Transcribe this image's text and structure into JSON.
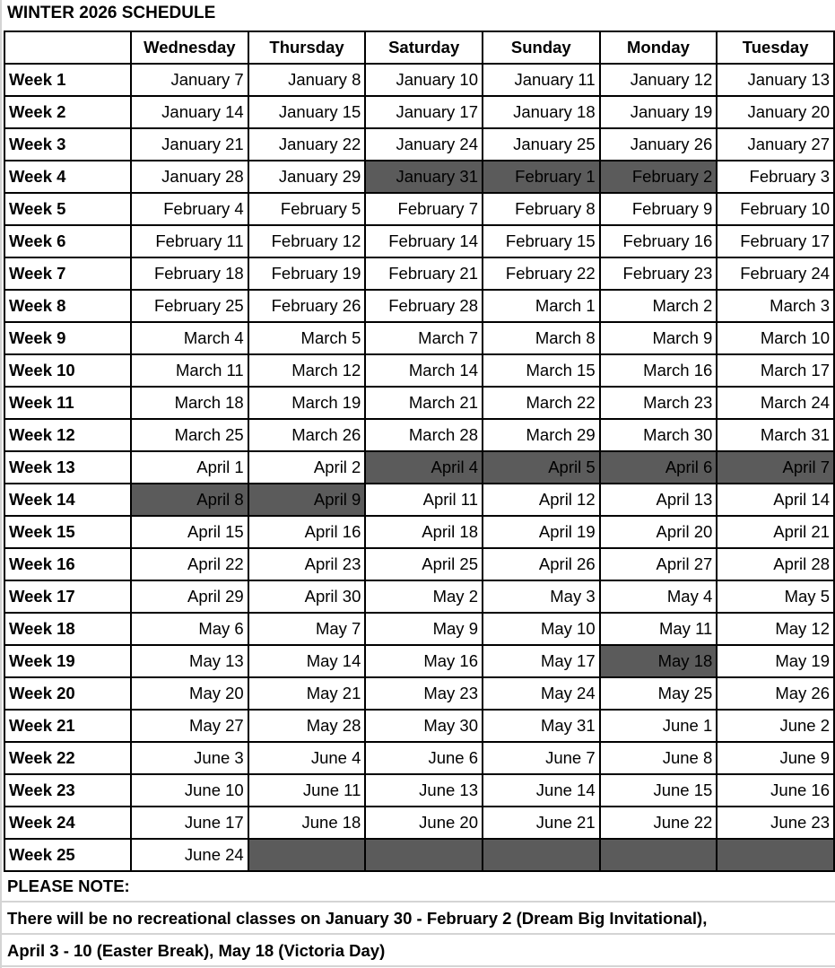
{
  "title": "WINTER 2026 SCHEDULE",
  "colors": {
    "closed": "#5b5b5b",
    "border": "#000000"
  },
  "days": [
    "Wednesday",
    "Thursday",
    "Saturday",
    "Sunday",
    "Monday",
    "Tuesday"
  ],
  "weeks": [
    {
      "label": "Week 1",
      "dates": [
        "January 7",
        "January 8",
        "January 10",
        "January 11",
        "January 12",
        "January 13"
      ],
      "closed": []
    },
    {
      "label": "Week 2",
      "dates": [
        "January 14",
        "January 15",
        "January 17",
        "January 18",
        "January 19",
        "January 20"
      ],
      "closed": []
    },
    {
      "label": "Week 3",
      "dates": [
        "January 21",
        "January 22",
        "January 24",
        "January 25",
        "January 26",
        "January 27"
      ],
      "closed": []
    },
    {
      "label": "Week 4",
      "dates": [
        "January 28",
        "January 29",
        "January 31",
        "February 1",
        "February 2",
        "February 3"
      ],
      "closed": [
        2,
        3,
        4
      ]
    },
    {
      "label": "Week 5",
      "dates": [
        "February 4",
        "February 5",
        "February 7",
        "February 8",
        "February 9",
        "February 10"
      ],
      "closed": []
    },
    {
      "label": "Week 6",
      "dates": [
        "February 11",
        "February 12",
        "February 14",
        "February 15",
        "February 16",
        "February 17"
      ],
      "closed": []
    },
    {
      "label": "Week 7",
      "dates": [
        "February 18",
        "February 19",
        "February 21",
        "February 22",
        "February 23",
        "February 24"
      ],
      "closed": []
    },
    {
      "label": "Week 8",
      "dates": [
        "February 25",
        "February 26",
        "February 28",
        "March 1",
        "March 2",
        "March 3"
      ],
      "closed": []
    },
    {
      "label": "Week 9",
      "dates": [
        "March 4",
        "March 5",
        "March 7",
        "March 8",
        "March 9",
        "March 10"
      ],
      "closed": []
    },
    {
      "label": "Week 10",
      "dates": [
        "March 11",
        "March 12",
        "March 14",
        "March 15",
        "March 16",
        "March 17"
      ],
      "closed": []
    },
    {
      "label": "Week 11",
      "dates": [
        "March 18",
        "March 19",
        "March 21",
        "March 22",
        "March 23",
        "March 24"
      ],
      "closed": []
    },
    {
      "label": "Week 12",
      "dates": [
        "March 25",
        "March 26",
        "March 28",
        "March 29",
        "March 30",
        "March 31"
      ],
      "closed": []
    },
    {
      "label": "Week 13",
      "dates": [
        "April 1",
        "April 2",
        "April 4",
        "April 5",
        "April 6",
        "April 7"
      ],
      "closed": [
        2,
        3,
        4,
        5
      ]
    },
    {
      "label": "Week 14",
      "dates": [
        "April 8",
        "April 9",
        "April 11",
        "April 12",
        "April 13",
        "April 14"
      ],
      "closed": [
        0,
        1
      ]
    },
    {
      "label": "Week 15",
      "dates": [
        "April 15",
        "April 16",
        "April 18",
        "April 19",
        "April 20",
        "April 21"
      ],
      "closed": []
    },
    {
      "label": "Week 16",
      "dates": [
        "April 22",
        "April 23",
        "April 25",
        "April 26",
        "April 27",
        "April 28"
      ],
      "closed": []
    },
    {
      "label": "Week 17",
      "dates": [
        "April 29",
        "April 30",
        "May 2",
        "May 3",
        "May 4",
        "May 5"
      ],
      "closed": []
    },
    {
      "label": "Week 18",
      "dates": [
        "May 6",
        "May 7",
        "May 9",
        "May 10",
        "May 11",
        "May 12"
      ],
      "closed": []
    },
    {
      "label": "Week 19",
      "dates": [
        "May 13",
        "May 14",
        "May 16",
        "May 17",
        "May 18",
        "May 19"
      ],
      "closed": [
        4
      ]
    },
    {
      "label": "Week 20",
      "dates": [
        "May 20",
        "May 21",
        "May 23",
        "May 24",
        "May 25",
        "May 26"
      ],
      "closed": []
    },
    {
      "label": "Week 21",
      "dates": [
        "May 27",
        "May 28",
        "May 30",
        "May 31",
        "June 1",
        "June 2"
      ],
      "closed": []
    },
    {
      "label": "Week 22",
      "dates": [
        "June 3",
        "June 4",
        "June 6",
        "June 7",
        "June 8",
        "June 9"
      ],
      "closed": []
    },
    {
      "label": "Week 23",
      "dates": [
        "June 10",
        "June 11",
        "June 13",
        "June 14",
        "June 15",
        "June 16"
      ],
      "closed": []
    },
    {
      "label": "Week 24",
      "dates": [
        "June 17",
        "June 18",
        "June 20",
        "June 21",
        "June 22",
        "June 23"
      ],
      "closed": []
    },
    {
      "label": "Week 25",
      "dates": [
        "June 24",
        "",
        "",
        "",
        "",
        ""
      ],
      "closed": [
        1,
        2,
        3,
        4,
        5
      ]
    }
  ],
  "notes": {
    "heading": "PLEASE NOTE:",
    "line1": "There will be no recreational classes on January 30 - February 2 (Dream Big Invitational),",
    "line2": "April 3 - 10 (Easter Break), May 18 (Victoria Day)"
  }
}
